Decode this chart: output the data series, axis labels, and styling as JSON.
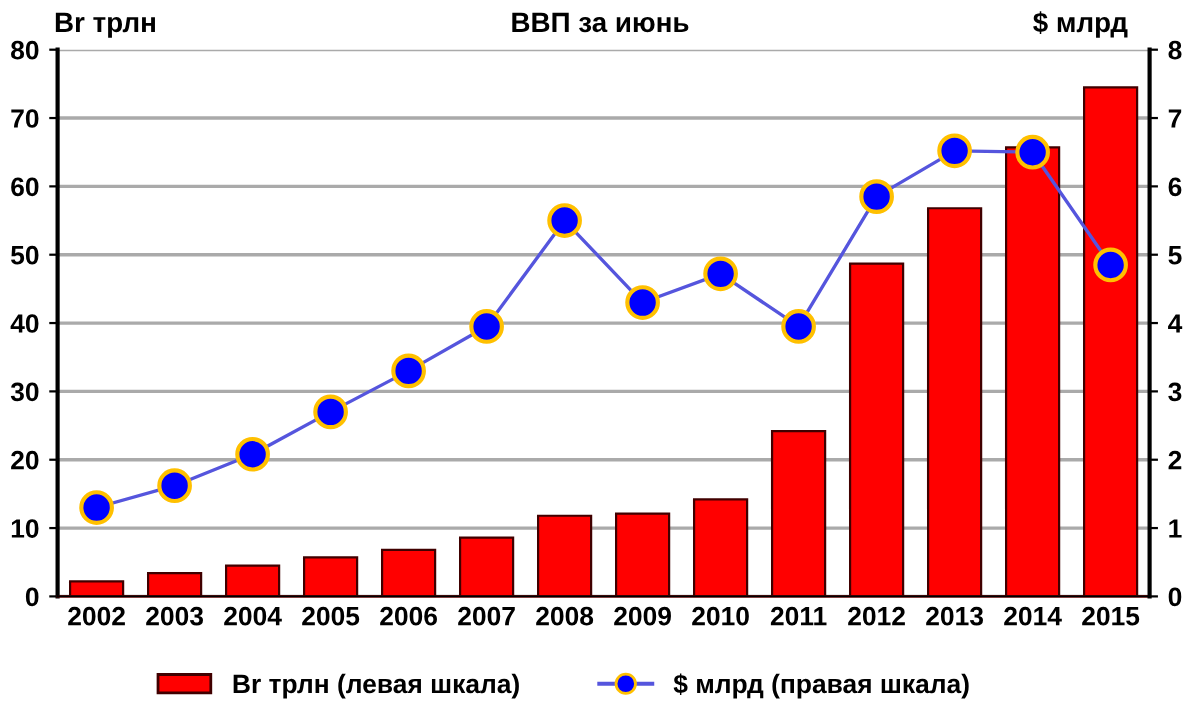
{
  "chart_data": {
    "type": "bar",
    "title": "ВВП за июнь",
    "ylabel": "Br трлн",
    "y2label": "$ млрд",
    "categories": [
      "2002",
      "2003",
      "2004",
      "2005",
      "2006",
      "2007",
      "2008",
      "2009",
      "2010",
      "2011",
      "2012",
      "2013",
      "2014",
      "2015"
    ],
    "series": [
      {
        "name": "Br трлн (левая шкала)",
        "color": "#ff0000",
        "values": [
          2.2,
          3.4,
          4.5,
          5.7,
          6.8,
          8.6,
          11.8,
          12.1,
          14.2,
          24.2,
          48.7,
          56.8,
          65.7,
          74.5
        ]
      },
      {
        "name": "$ млрд (правая шкала)",
        "type": "line",
        "axis": "y2",
        "color": "#0000ff",
        "marker": "circle",
        "values": [
          1.3,
          1.62,
          2.08,
          2.7,
          3.3,
          3.95,
          5.5,
          4.3,
          4.72,
          3.95,
          5.85,
          6.52,
          6.5,
          4.85
        ]
      }
    ],
    "ylim": [
      0,
      80
    ],
    "yticks": [
      0,
      10,
      20,
      30,
      40,
      50,
      60,
      70,
      80
    ],
    "y2lim": [
      0,
      8
    ],
    "y2ticks": [
      0,
      1,
      2,
      3,
      4,
      5,
      6,
      7,
      8
    ],
    "grid": "y",
    "legend": "bottom"
  }
}
